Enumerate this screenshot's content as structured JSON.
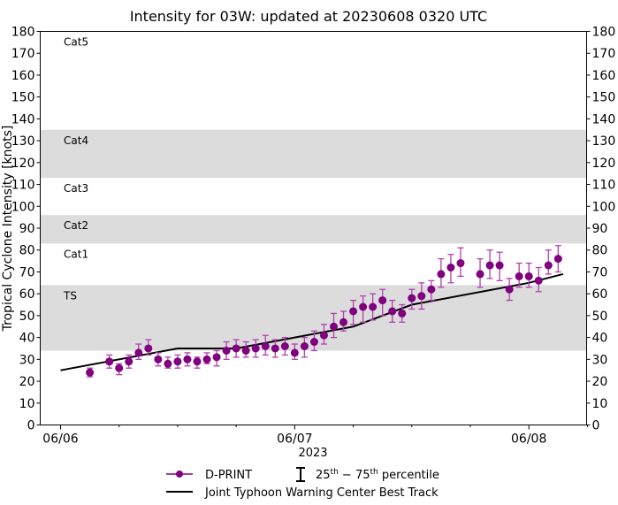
{
  "chart_data": {
    "type": "scatter",
    "title": "Intensity for 03W: updated at 20230608 0320 UTC",
    "ylabel": "Tropical Cyclone Intensity [knots]",
    "xlabel": "2023",
    "ylim": [
      0,
      180
    ],
    "yticks": [
      0,
      10,
      20,
      30,
      40,
      50,
      60,
      70,
      80,
      90,
      100,
      110,
      120,
      130,
      140,
      150,
      160,
      170,
      180
    ],
    "xlim": [
      "2023-06-05T21:55",
      "2023-06-08T05:55"
    ],
    "xticks": [
      {
        "t": "2023-06-06T00:00",
        "label": "06/06"
      },
      {
        "t": "2023-06-07T00:00",
        "label": "06/07"
      },
      {
        "t": "2023-06-08T00:00",
        "label": "06/08"
      }
    ],
    "minor_xticks": [
      "2023-06-06T06:00",
      "2023-06-06T12:00",
      "2023-06-06T18:00",
      "2023-06-07T06:00",
      "2023-06-07T12:00",
      "2023-06-07T18:00",
      "2023-06-08T06:00"
    ],
    "grid": false,
    "bands": [
      {
        "label": "TS",
        "lo": 34,
        "hi": 64,
        "shaded": true
      },
      {
        "label": "Cat1",
        "lo": 64,
        "hi": 83,
        "shaded": false
      },
      {
        "label": "Cat2",
        "lo": 83,
        "hi": 96,
        "shaded": true
      },
      {
        "label": "Cat3",
        "lo": 96,
        "hi": 113,
        "shaded": false
      },
      {
        "label": "Cat4",
        "lo": 113,
        "hi": 135,
        "shaded": true
      },
      {
        "label": "Cat5",
        "lo": 135,
        "hi": 180,
        "shaded": false
      }
    ],
    "band_color": "#dcdcdc",
    "series": [
      {
        "name": "D-PRINT",
        "color": "#800080",
        "errorbar_color": "#b040b0",
        "points": [
          {
            "t": "2023-06-06T03:00",
            "y": 24,
            "lo": 22,
            "hi": 26
          },
          {
            "t": "2023-06-06T05:00",
            "y": 29,
            "lo": 26,
            "hi": 32
          },
          {
            "t": "2023-06-06T06:00",
            "y": 26,
            "lo": 23,
            "hi": 28
          },
          {
            "t": "2023-06-06T07:00",
            "y": 29,
            "lo": 26,
            "hi": 32
          },
          {
            "t": "2023-06-06T08:00",
            "y": 33,
            "lo": 30,
            "hi": 37
          },
          {
            "t": "2023-06-06T09:00",
            "y": 35,
            "lo": 32,
            "hi": 39
          },
          {
            "t": "2023-06-06T10:00",
            "y": 30,
            "lo": 27,
            "hi": 33
          },
          {
            "t": "2023-06-06T11:00",
            "y": 28,
            "lo": 26,
            "hi": 31
          },
          {
            "t": "2023-06-06T12:00",
            "y": 29,
            "lo": 26,
            "hi": 32
          },
          {
            "t": "2023-06-06T13:00",
            "y": 30,
            "lo": 27,
            "hi": 33
          },
          {
            "t": "2023-06-06T14:00",
            "y": 29,
            "lo": 26,
            "hi": 31
          },
          {
            "t": "2023-06-06T15:00",
            "y": 30,
            "lo": 28,
            "hi": 33
          },
          {
            "t": "2023-06-06T16:00",
            "y": 31,
            "lo": 27,
            "hi": 34
          },
          {
            "t": "2023-06-06T17:00",
            "y": 34,
            "lo": 30,
            "hi": 38
          },
          {
            "t": "2023-06-06T18:00",
            "y": 35,
            "lo": 31,
            "hi": 39
          },
          {
            "t": "2023-06-06T19:00",
            "y": 34,
            "lo": 31,
            "hi": 38
          },
          {
            "t": "2023-06-06T20:00",
            "y": 35,
            "lo": 31,
            "hi": 39
          },
          {
            "t": "2023-06-06T21:00",
            "y": 36,
            "lo": 32,
            "hi": 41
          },
          {
            "t": "2023-06-06T22:00",
            "y": 35,
            "lo": 31,
            "hi": 39
          },
          {
            "t": "2023-06-06T23:00",
            "y": 36,
            "lo": 32,
            "hi": 40
          },
          {
            "t": "2023-06-07T00:00",
            "y": 33,
            "lo": 30,
            "hi": 37
          },
          {
            "t": "2023-06-07T01:00",
            "y": 36,
            "lo": 31,
            "hi": 40
          },
          {
            "t": "2023-06-07T02:00",
            "y": 38,
            "lo": 34,
            "hi": 43
          },
          {
            "t": "2023-06-07T03:00",
            "y": 41,
            "lo": 37,
            "hi": 46
          },
          {
            "t": "2023-06-07T04:00",
            "y": 45,
            "lo": 40,
            "hi": 51
          },
          {
            "t": "2023-06-07T05:00",
            "y": 47,
            "lo": 43,
            "hi": 52
          },
          {
            "t": "2023-06-07T06:00",
            "y": 52,
            "lo": 46,
            "hi": 57
          },
          {
            "t": "2023-06-07T07:00",
            "y": 54,
            "lo": 47,
            "hi": 59
          },
          {
            "t": "2023-06-07T08:00",
            "y": 54,
            "lo": 48,
            "hi": 60
          },
          {
            "t": "2023-06-07T09:00",
            "y": 57,
            "lo": 50,
            "hi": 62
          },
          {
            "t": "2023-06-07T10:00",
            "y": 52,
            "lo": 47,
            "hi": 57
          },
          {
            "t": "2023-06-07T11:00",
            "y": 51,
            "lo": 47,
            "hi": 55
          },
          {
            "t": "2023-06-07T12:00",
            "y": 58,
            "lo": 53,
            "hi": 62
          },
          {
            "t": "2023-06-07T13:00",
            "y": 59,
            "lo": 53,
            "hi": 65
          },
          {
            "t": "2023-06-07T14:00",
            "y": 62,
            "lo": 57,
            "hi": 66
          },
          {
            "t": "2023-06-07T15:00",
            "y": 69,
            "lo": 63,
            "hi": 76
          },
          {
            "t": "2023-06-07T16:00",
            "y": 72,
            "lo": 65,
            "hi": 78
          },
          {
            "t": "2023-06-07T17:00",
            "y": 74,
            "lo": 68,
            "hi": 81
          },
          {
            "t": "2023-06-07T19:00",
            "y": 69,
            "lo": 63,
            "hi": 76
          },
          {
            "t": "2023-06-07T20:00",
            "y": 73,
            "lo": 67,
            "hi": 80
          },
          {
            "t": "2023-06-07T21:00",
            "y": 73,
            "lo": 66,
            "hi": 79
          },
          {
            "t": "2023-06-07T22:00",
            "y": 62,
            "lo": 57,
            "hi": 67
          },
          {
            "t": "2023-06-07T23:00",
            "y": 68,
            "lo": 63,
            "hi": 74
          },
          {
            "t": "2023-06-08T00:00",
            "y": 68,
            "lo": 63,
            "hi": 74
          },
          {
            "t": "2023-06-08T01:00",
            "y": 66,
            "lo": 61,
            "hi": 72
          },
          {
            "t": "2023-06-08T02:00",
            "y": 73,
            "lo": 69,
            "hi": 80
          },
          {
            "t": "2023-06-08T03:00",
            "y": 76,
            "lo": 70,
            "hi": 82
          }
        ]
      },
      {
        "name": "Joint Typhoon Warning Center Best Track",
        "color": "#000000",
        "points": [
          {
            "t": "2023-06-06T00:00",
            "y": 25
          },
          {
            "t": "2023-06-06T12:00",
            "y": 35
          },
          {
            "t": "2023-06-06T18:00",
            "y": 35
          },
          {
            "t": "2023-06-07T00:00",
            "y": 40
          },
          {
            "t": "2023-06-07T06:00",
            "y": 45
          },
          {
            "t": "2023-06-07T12:00",
            "y": 55
          },
          {
            "t": "2023-06-08T00:00",
            "y": 65
          },
          {
            "t": "2023-06-08T03:30",
            "y": 69
          }
        ]
      }
    ],
    "legend": {
      "placement": "bottom",
      "dprint_label": "D-PRINT",
      "percentile_label": "25th – 75th percentile",
      "pct_lo": "25",
      "pct_lo_sup": "th",
      "pct_sep": " − ",
      "pct_hi": "75",
      "pct_hi_sup": "th",
      "pct_word": " percentile",
      "besttrack_label": "Joint Typhoon Warning Center Best Track"
    }
  }
}
